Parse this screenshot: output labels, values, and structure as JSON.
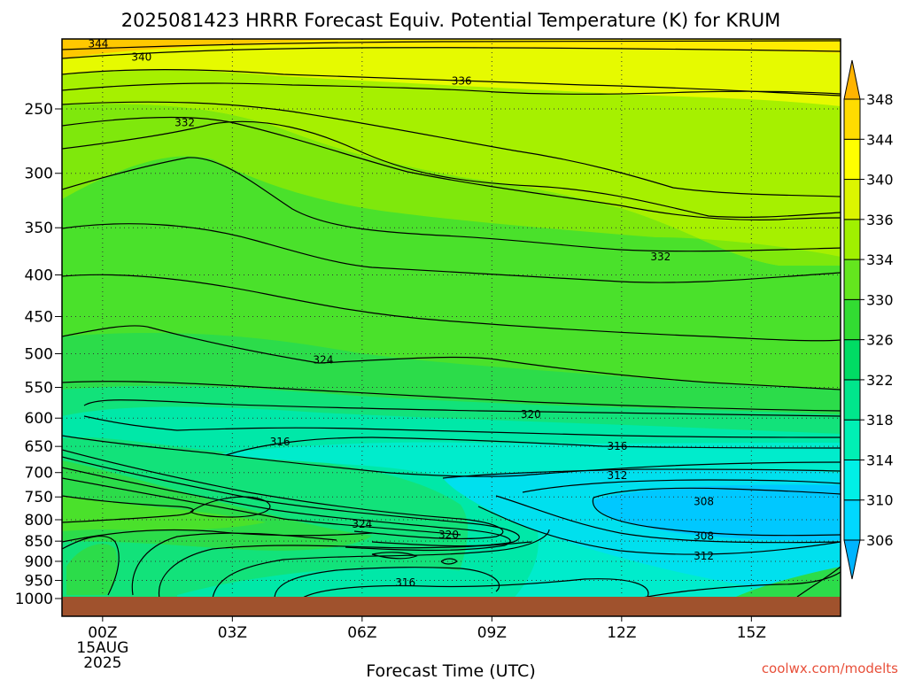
{
  "chart_data": {
    "type": "heatmap",
    "title": "2025081423 HRRR Forecast Equiv. Potential Temperature (K) for KRUM",
    "xlabel": "Forecast Time (UTC)",
    "ylabel": "",
    "x_ticks": [
      {
        "hour": 1,
        "label": "00Z",
        "label2": "15AUG",
        "label3": "2025"
      },
      {
        "hour": 4,
        "label": "03Z"
      },
      {
        "hour": 7,
        "label": "06Z"
      },
      {
        "hour": 10,
        "label": "09Z"
      },
      {
        "hour": 13,
        "label": "12Z"
      },
      {
        "hour": 16,
        "label": "15Z"
      }
    ],
    "x_range_hours": [
      0,
      18
    ],
    "y_ticks": [
      250,
      300,
      350,
      400,
      450,
      500,
      550,
      600,
      650,
      700,
      750,
      800,
      850,
      900,
      950,
      1000
    ],
    "y_range_hpa": [
      200,
      1000
    ],
    "y_scale": "log",
    "colorbar": {
      "levels": [
        306,
        310,
        314,
        318,
        322,
        326,
        330,
        334,
        336,
        340,
        344,
        348
      ],
      "colors": [
        "#00b4ff",
        "#00d8ff",
        "#00f0e6",
        "#00f0b4",
        "#00e68c",
        "#00dc64",
        "#32dc32",
        "#64e61e",
        "#a0f000",
        "#dcf500",
        "#ffff00",
        "#ffdc00",
        "#ffb400"
      ]
    },
    "contour_labels": [
      {
        "value": "344",
        "hour": 0.9,
        "p": 208
      },
      {
        "value": "340",
        "hour": 1.9,
        "p": 216
      },
      {
        "value": "336",
        "hour": 9.3,
        "p": 231
      },
      {
        "value": "332",
        "hour": 2.9,
        "p": 260
      },
      {
        "value": "332",
        "hour": 13.9,
        "p": 380
      },
      {
        "value": "324",
        "hour": 6.1,
        "p": 509
      },
      {
        "value": "320",
        "hour": 10.9,
        "p": 594
      },
      {
        "value": "316",
        "hour": 5.1,
        "p": 642
      },
      {
        "value": "316",
        "hour": 12.9,
        "p": 650
      },
      {
        "value": "312",
        "hour": 12.9,
        "p": 706
      },
      {
        "value": "308",
        "hour": 14.9,
        "p": 760
      },
      {
        "value": "324",
        "hour": 7.0,
        "p": 810
      },
      {
        "value": "320",
        "hour": 9.0,
        "p": 835
      },
      {
        "value": "308",
        "hour": 14.9,
        "p": 838
      },
      {
        "value": "312",
        "hour": 14.9,
        "p": 887
      },
      {
        "value": "316",
        "hour": 8.0,
        "p": 956
      }
    ],
    "grid": "dotted",
    "legend": "colorbar-right"
  },
  "credit": "coolwx.com/modelts"
}
